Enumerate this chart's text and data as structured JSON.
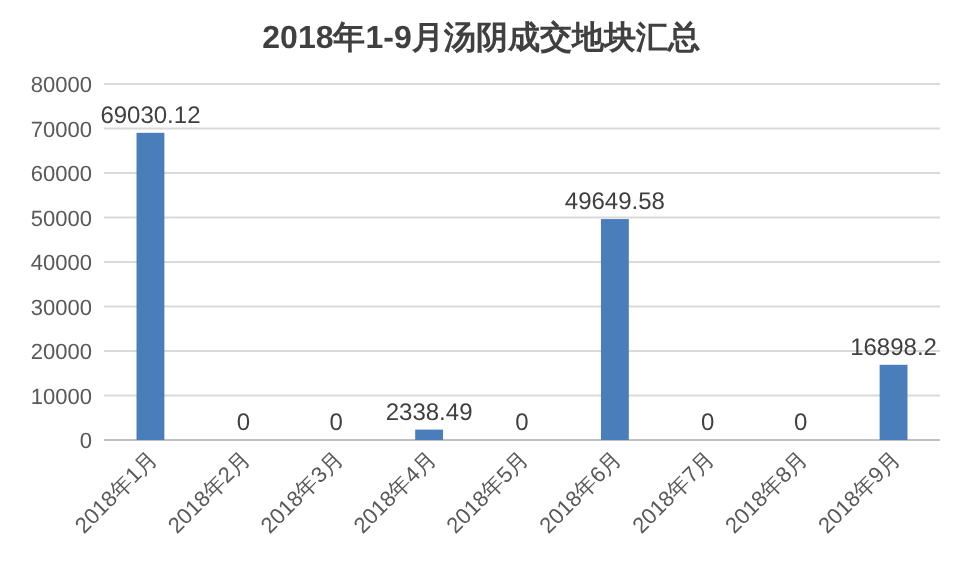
{
  "chart_data": {
    "type": "bar",
    "title": "2018年1-9月汤阴成交地块汇总",
    "categories": [
      "2018年1月",
      "2018年2月",
      "2018年3月",
      "2018年4月",
      "2018年5月",
      "2018年6月",
      "2018年7月",
      "2018年8月",
      "2018年9月"
    ],
    "values": [
      69030.12,
      0,
      0,
      2338.49,
      0,
      49649.58,
      0,
      0,
      16898.2
    ],
    "color": "#4a7ebb",
    "ylim": [
      0,
      80000
    ],
    "yticks": [
      0,
      10000,
      20000,
      30000,
      40000,
      50000,
      60000,
      70000,
      80000
    ],
    "grid": "y",
    "data_labels": true
  }
}
